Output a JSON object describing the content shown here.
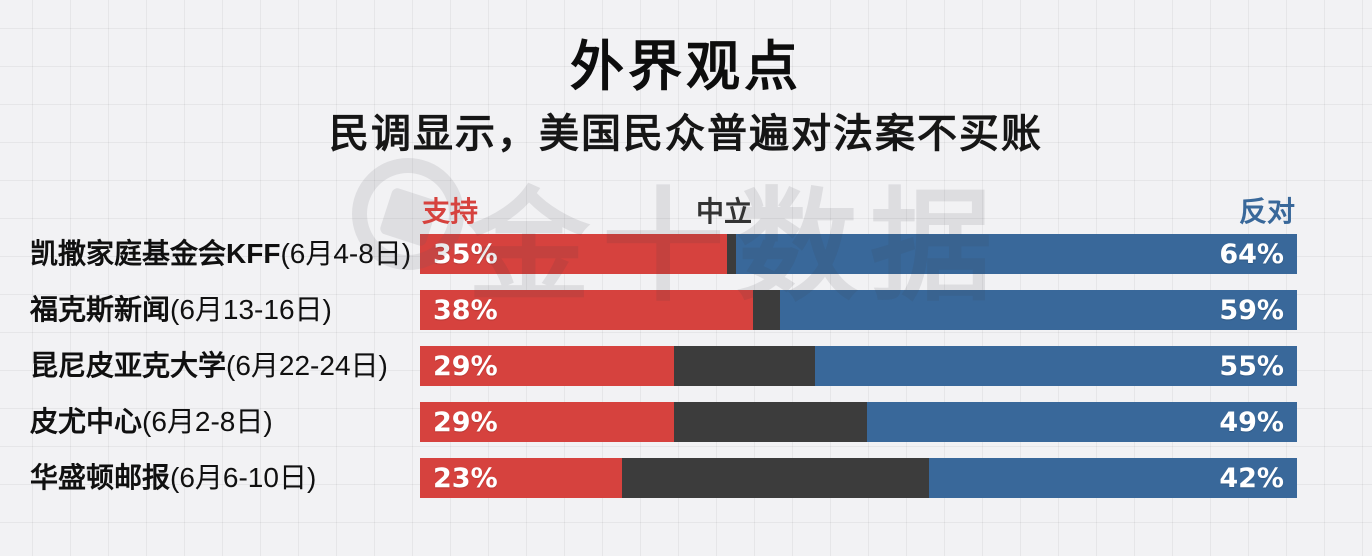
{
  "header": {
    "title": "外界观点",
    "subtitle": "民调显示，美国民众普遍对法案不买账"
  },
  "watermark": {
    "text": "金十数据"
  },
  "legend": {
    "support": "支持",
    "neutral": "中立",
    "oppose": "反对"
  },
  "colors": {
    "support": "#d6423e",
    "neutral": "#3c3c3c",
    "oppose": "#39689a",
    "support_label": "#d6423e",
    "neutral_label": "#333333",
    "oppose_label": "#39689a",
    "background": "#f2f2f4"
  },
  "rows": [
    {
      "org": "凯撒家庭基金会KFF",
      "dates": "(6月4-8日)",
      "support": 35,
      "neutral": 1,
      "oppose": 64,
      "support_label": "35%",
      "oppose_label": "64%"
    },
    {
      "org": "福克斯新闻",
      "dates": "(6月13-16日)",
      "support": 38,
      "neutral": 3,
      "oppose": 59,
      "support_label": "38%",
      "oppose_label": "59%"
    },
    {
      "org": "昆尼皮亚克大学",
      "dates": "(6月22-24日)",
      "support": 29,
      "neutral": 16,
      "oppose": 55,
      "support_label": "29%",
      "oppose_label": "55%"
    },
    {
      "org": "皮尤中心",
      "dates": "(6月2-8日)",
      "support": 29,
      "neutral": 22,
      "oppose": 49,
      "support_label": "29%",
      "oppose_label": "49%"
    },
    {
      "org": "华盛顿邮报",
      "dates": "(6月6-10日)",
      "support": 23,
      "neutral": 35,
      "oppose": 42,
      "support_label": "23%",
      "oppose_label": "42%"
    }
  ],
  "chart_data": {
    "type": "bar",
    "orientation": "horizontal",
    "stacked": true,
    "unit": "percent",
    "title": "外界观点",
    "subtitle": "民调显示，美国民众普遍对法案不买账",
    "xlim": [
      0,
      100
    ],
    "grid": "graph-paper background",
    "legend_position": "top, spanning bar area (support left, neutral center-left, oppose right)",
    "categories": [
      "凯撒家庭基金会KFF(6月4-8日)",
      "福克斯新闻(6月13-16日)",
      "昆尼皮亚克大学(6月22-24日)",
      "皮尤中心(6月2-8日)",
      "华盛顿邮报(6月6-10日)"
    ],
    "series": [
      {
        "name": "支持",
        "color": "#d6423e",
        "values": [
          35,
          38,
          29,
          29,
          23
        ],
        "labels": [
          "35%",
          "38%",
          "29%",
          "29%",
          "23%"
        ]
      },
      {
        "name": "中立",
        "color": "#3c3c3c",
        "values": [
          1,
          3,
          16,
          22,
          35
        ],
        "labels": [
          "",
          "",
          "",
          "",
          ""
        ]
      },
      {
        "name": "反对",
        "color": "#39689a",
        "values": [
          64,
          59,
          55,
          49,
          42
        ],
        "labels": [
          "64%",
          "59%",
          "55%",
          "49%",
          "42%"
        ]
      }
    ]
  }
}
